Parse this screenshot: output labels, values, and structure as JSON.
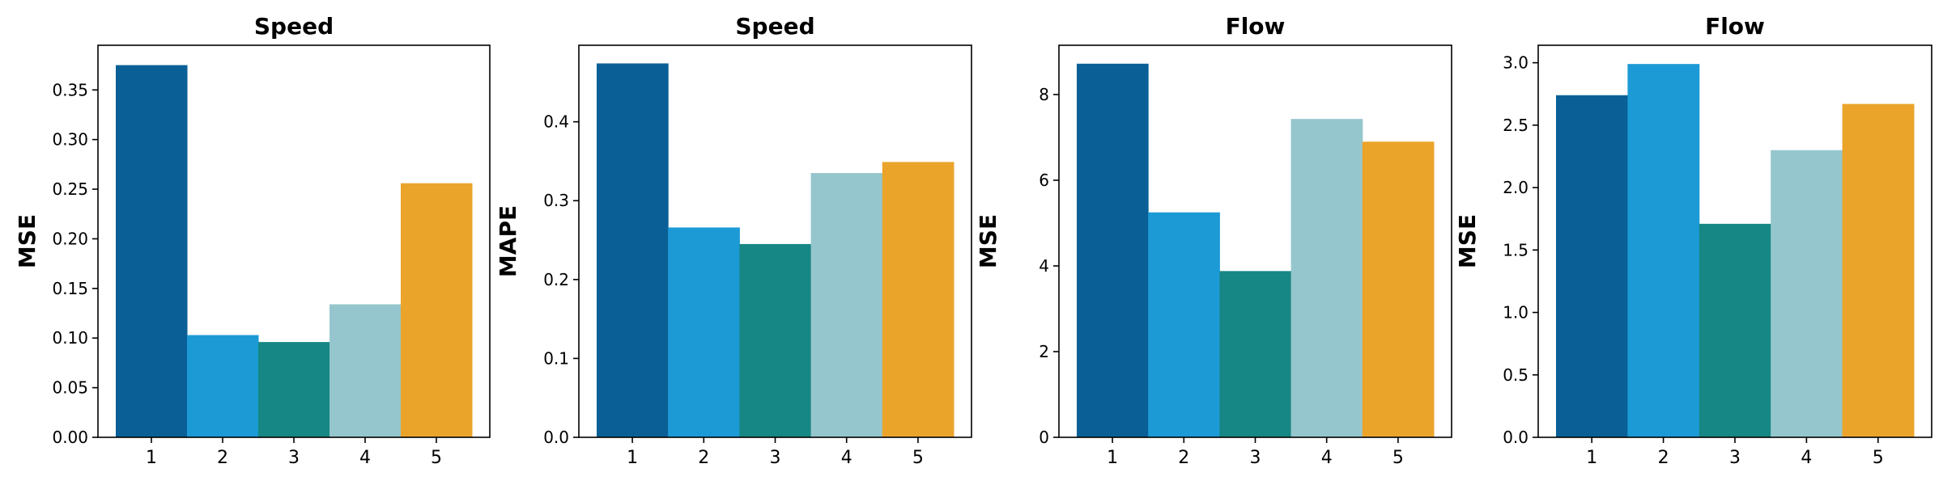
{
  "chart_data": [
    {
      "type": "bar",
      "title": "Speed",
      "ylabel": "MSE",
      "xlabel": "",
      "categories": [
        "1",
        "2",
        "3",
        "4",
        "5"
      ],
      "values": [
        0.375,
        0.103,
        0.096,
        0.134,
        0.256
      ],
      "ylim": [
        0,
        0.395
      ],
      "yticks": [
        "0.00",
        "0.05",
        "0.10",
        "0.15",
        "0.20",
        "0.25",
        "0.30",
        "0.35"
      ],
      "colors": [
        "#0a6096",
        "#1c9ad6",
        "#168784",
        "#96c6cd",
        "#eba42a"
      ],
      "grid": false
    },
    {
      "type": "bar",
      "title": "Speed",
      "ylabel": "MAPE",
      "xlabel": "",
      "categories": [
        "1",
        "2",
        "3",
        "4",
        "5"
      ],
      "values": [
        0.474,
        0.266,
        0.245,
        0.335,
        0.349
      ],
      "ylim": [
        0,
        0.497
      ],
      "yticks": [
        "0.0",
        "0.1",
        "0.2",
        "0.3",
        "0.4"
      ],
      "colors": [
        "#0a6096",
        "#1c9ad6",
        "#168784",
        "#96c6cd",
        "#eba42a"
      ],
      "grid": false
    },
    {
      "type": "bar",
      "title": "Flow",
      "ylabel": "MSE",
      "xlabel": "",
      "categories": [
        "1",
        "2",
        "3",
        "4",
        "5"
      ],
      "values": [
        8.72,
        5.25,
        3.88,
        7.43,
        6.9
      ],
      "ylim": [
        0,
        9.15
      ],
      "yticks": [
        "0",
        "2",
        "4",
        "6",
        "8"
      ],
      "colors": [
        "#0a6096",
        "#1c9ad6",
        "#168784",
        "#96c6cd",
        "#eba42a"
      ],
      "grid": false
    },
    {
      "type": "bar",
      "title": "Flow",
      "ylabel": "MSE",
      "xlabel": "",
      "categories": [
        "1",
        "2",
        "3",
        "4",
        "5"
      ],
      "values": [
        2.74,
        2.99,
        1.71,
        2.3,
        2.67
      ],
      "ylim": [
        0,
        3.14
      ],
      "yticks": [
        "0.0",
        "0.5",
        "1.0",
        "1.5",
        "2.0",
        "2.5",
        "3.0"
      ],
      "colors": [
        "#0a6096",
        "#1c9ad6",
        "#168784",
        "#96c6cd",
        "#eba42a"
      ],
      "grid": false
    }
  ]
}
